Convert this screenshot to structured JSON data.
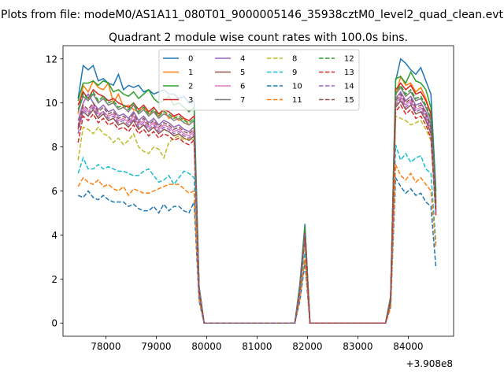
{
  "chart_data": {
    "type": "line",
    "suptitle": "Plots from file: modeM0/AS1A11_080T01_9000005146_35938cztM0_level2_quad_clean.evt",
    "title": "Quadrant 2 module wise count rates with 100.0s bins.",
    "xlabel": "",
    "ylabel": "",
    "x_offset_label": "+3.908e8",
    "x_offset": 390800000,
    "xlim": [
      77150,
      84900
    ],
    "ylim": [
      -0.6,
      12.6
    ],
    "x_ticks": [
      78000,
      79000,
      80000,
      81000,
      82000,
      83000,
      84000
    ],
    "y_ticks": [
      0,
      2,
      4,
      6,
      8,
      10,
      12
    ],
    "grid": false,
    "legend": {
      "placement": "top-center",
      "columns": 4
    },
    "x": [
      77450,
      77550,
      77650,
      77750,
      77850,
      77950,
      78050,
      78150,
      78250,
      78350,
      78450,
      78550,
      78650,
      78750,
      78850,
      78950,
      79050,
      79150,
      79250,
      79350,
      79450,
      79550,
      79650,
      79750,
      79850,
      79950,
      80050,
      80150,
      80250,
      80350,
      80450,
      80550,
      80650,
      80750,
      80850,
      80950,
      81050,
      81150,
      81250,
      81350,
      81450,
      81550,
      81650,
      81750,
      81850,
      81950,
      82050,
      82150,
      82250,
      82350,
      82450,
      82550,
      82650,
      82750,
      82850,
      82950,
      83050,
      83150,
      83250,
      83350,
      83450,
      83550,
      83650,
      83750,
      83850,
      83950,
      84050,
      84150,
      84250,
      84350,
      84450,
      84550
    ],
    "series": [
      {
        "name": "0",
        "color": "#1f77b4",
        "dash": "solid",
        "values": [
          10.2,
          11.7,
          11.5,
          11.7,
          11.0,
          11.1,
          10.9,
          10.8,
          11.3,
          10.6,
          10.8,
          10.7,
          10.8,
          10.5,
          10.6,
          10.4,
          10.5,
          10.6,
          10.4,
          10.4,
          10.2,
          10.3,
          10.0,
          10.1,
          1.7,
          0,
          0,
          0,
          0,
          0,
          0,
          0,
          0,
          0,
          0,
          0,
          0,
          0,
          0,
          0,
          0,
          0,
          0,
          0,
          1.8,
          4.5,
          0,
          0,
          0,
          0,
          0,
          0,
          0,
          0,
          0,
          0,
          0,
          0,
          0,
          0,
          0,
          0,
          1.2,
          11.0,
          12.0,
          11.8,
          11.5,
          11.3,
          11.6,
          11.0,
          10.4,
          6.0
        ]
      },
      {
        "name": "1",
        "color": "#ff7f0e",
        "dash": "solid",
        "values": [
          9.5,
          10.8,
          10.5,
          11.0,
          10.7,
          10.6,
          10.9,
          10.0,
          10.4,
          9.8,
          9.9,
          9.7,
          9.6,
          9.8,
          9.5,
          9.6,
          9.4,
          9.7,
          9.3,
          9.4,
          9.2,
          9.3,
          9.0,
          9.2,
          1.5,
          0,
          0,
          0,
          0,
          0,
          0,
          0,
          0,
          0,
          0,
          0,
          0,
          0,
          0,
          0,
          0,
          0,
          0,
          0,
          1.6,
          4.1,
          0,
          0,
          0,
          0,
          0,
          0,
          0,
          0,
          0,
          0,
          0,
          0,
          0,
          0,
          0,
          0,
          1.1,
          10.3,
          11.2,
          10.8,
          10.9,
          10.5,
          10.7,
          10.2,
          9.5,
          5.4
        ]
      },
      {
        "name": "2",
        "color": "#2ca02c",
        "dash": "solid",
        "values": [
          10.1,
          10.9,
          10.9,
          11.0,
          10.8,
          11.0,
          10.9,
          10.5,
          10.6,
          10.4,
          10.3,
          10.5,
          10.2,
          10.4,
          10.6,
          10.2,
          10.0,
          10.1,
          10.3,
          9.9,
          10.0,
          9.8,
          9.6,
          9.8,
          1.6,
          0,
          0,
          0,
          0,
          0,
          0,
          0,
          0,
          0,
          0,
          0,
          0,
          0,
          0,
          0,
          0,
          0,
          0,
          0,
          1.7,
          4.4,
          0,
          0,
          0,
          0,
          0,
          0,
          0,
          0,
          0,
          0,
          0,
          0,
          0,
          0,
          0,
          0,
          1.2,
          11.1,
          11.2,
          10.9,
          11.4,
          11.0,
          10.9,
          10.6,
          9.8,
          5.7
        ]
      },
      {
        "name": "3",
        "color": "#d62728",
        "dash": "solid",
        "values": [
          9.9,
          10.5,
          10.2,
          10.6,
          10.4,
          10.3,
          10.1,
          10.2,
          10.0,
          9.9,
          9.8,
          10.0,
          9.7,
          9.9,
          9.6,
          9.8,
          9.5,
          9.7,
          9.6,
          9.4,
          9.5,
          9.3,
          9.2,
          9.4,
          1.6,
          0,
          0,
          0,
          0,
          0,
          0,
          0,
          0,
          0,
          0,
          0,
          0,
          0,
          0,
          0,
          0,
          0,
          0,
          0,
          1.6,
          4.3,
          0,
          0,
          0,
          0,
          0,
          0,
          0,
          0,
          0,
          0,
          0,
          0,
          0,
          0,
          0,
          0,
          1.1,
          10.6,
          10.9,
          10.6,
          10.8,
          10.4,
          10.5,
          10.1,
          9.5,
          5.5
        ]
      },
      {
        "name": "4",
        "color": "#9467bd",
        "dash": "solid",
        "values": [
          9.2,
          10.0,
          10.4,
          10.0,
          9.7,
          9.9,
          9.6,
          9.7,
          9.4,
          9.5,
          9.3,
          9.6,
          9.2,
          9.4,
          9.1,
          9.3,
          9.0,
          9.2,
          9.1,
          8.9,
          9.0,
          8.8,
          8.7,
          8.9,
          1.5,
          0,
          0,
          0,
          0,
          0,
          0,
          0,
          0,
          0,
          0,
          0,
          0,
          0,
          0,
          0,
          0,
          0,
          0,
          0,
          1.6,
          4.2,
          0,
          0,
          0,
          0,
          0,
          0,
          0,
          0,
          0,
          0,
          0,
          0,
          0,
          0,
          0,
          0,
          1.1,
          10.2,
          10.5,
          10.1,
          10.3,
          9.9,
          10.0,
          9.6,
          9.0,
          5.2
        ]
      },
      {
        "name": "5",
        "color": "#8c564b",
        "dash": "solid",
        "values": [
          8.8,
          9.6,
          9.4,
          9.7,
          9.3,
          9.5,
          9.2,
          9.3,
          9.0,
          9.1,
          8.9,
          9.2,
          8.8,
          9.0,
          8.7,
          8.9,
          8.6,
          8.8,
          8.7,
          8.5,
          8.6,
          8.4,
          8.3,
          8.5,
          1.4,
          0,
          0,
          0,
          0,
          0,
          0,
          0,
          0,
          0,
          0,
          0,
          0,
          0,
          0,
          0,
          0,
          0,
          0,
          0,
          1.5,
          4.0,
          0,
          0,
          0,
          0,
          0,
          0,
          0,
          0,
          0,
          0,
          0,
          0,
          0,
          0,
          0,
          0,
          1.0,
          9.8,
          10.1,
          9.7,
          9.9,
          9.5,
          9.6,
          9.2,
          8.6,
          5.0
        ]
      },
      {
        "name": "6",
        "color": "#e377c2",
        "dash": "solid",
        "values": [
          9.0,
          9.8,
          9.6,
          9.9,
          9.5,
          9.6,
          9.4,
          9.5,
          9.2,
          9.3,
          9.1,
          9.4,
          9.0,
          9.2,
          8.9,
          9.1,
          8.8,
          9.0,
          8.9,
          8.7,
          8.8,
          8.6,
          8.5,
          8.7,
          1.5,
          0,
          0,
          0,
          0,
          0,
          0,
          0,
          0,
          0,
          0,
          0,
          0,
          0,
          0,
          0,
          0,
          0,
          0,
          0,
          1.5,
          4.1,
          0,
          0,
          0,
          0,
          0,
          0,
          0,
          0,
          0,
          0,
          0,
          0,
          0,
          0,
          0,
          0,
          1.0,
          10.0,
          10.3,
          9.9,
          10.1,
          9.7,
          9.8,
          9.4,
          8.8,
          5.1
        ]
      },
      {
        "name": "7",
        "color": "#7f7f7f",
        "dash": "solid",
        "values": [
          9.6,
          10.3,
          10.1,
          10.4,
          10.0,
          10.2,
          9.9,
          10.0,
          9.7,
          9.8,
          9.6,
          9.9,
          9.5,
          9.7,
          9.4,
          9.6,
          9.3,
          9.5,
          9.4,
          9.2,
          9.3,
          9.1,
          9.0,
          9.2,
          1.6,
          0,
          0,
          0,
          0,
          0,
          0,
          0,
          0,
          0,
          0,
          0,
          0,
          0,
          0,
          0,
          0,
          0,
          0,
          0,
          1.6,
          4.3,
          0,
          0,
          0,
          0,
          0,
          0,
          0,
          0,
          0,
          0,
          0,
          0,
          0,
          0,
          0,
          0,
          1.1,
          10.4,
          10.7,
          10.3,
          10.5,
          10.1,
          10.2,
          9.8,
          9.2,
          5.3
        ]
      },
      {
        "name": "8",
        "color": "#bcbd22",
        "dash": "dashed",
        "values": [
          7.4,
          8.9,
          8.8,
          8.6,
          8.9,
          8.6,
          8.5,
          8.2,
          8.4,
          8.1,
          8.3,
          8.6,
          8.0,
          7.8,
          7.7,
          8.0,
          7.9,
          7.5,
          8.2,
          8.4,
          8.5,
          8.3,
          8.4,
          8.3,
          1.3,
          0,
          0,
          0,
          0,
          0,
          0,
          0,
          0,
          0,
          0,
          0,
          0,
          0,
          0,
          0,
          0,
          0,
          0,
          0,
          1.4,
          3.7,
          0,
          0,
          0,
          0,
          0,
          0,
          0,
          0,
          0,
          0,
          0,
          0,
          0,
          0,
          0,
          0,
          0.9,
          9.4,
          9.3,
          9.2,
          9.0,
          9.1,
          9.2,
          8.8,
          8.3,
          4.8
        ]
      },
      {
        "name": "9",
        "color": "#17becf",
        "dash": "dashed",
        "values": [
          6.8,
          7.5,
          7.0,
          7.0,
          7.2,
          7.0,
          7.1,
          7.0,
          6.9,
          6.9,
          6.8,
          6.7,
          6.7,
          6.9,
          7.0,
          6.7,
          6.4,
          6.5,
          6.7,
          6.3,
          6.6,
          6.9,
          6.8,
          6.6,
          1.2,
          0,
          0,
          0,
          0,
          0,
          0,
          0,
          0,
          0,
          0,
          0,
          0,
          0,
          0,
          0,
          0,
          0,
          0,
          0,
          1.2,
          3.2,
          0,
          0,
          0,
          0,
          0,
          0,
          0,
          0,
          0,
          0,
          0,
          0,
          0,
          0,
          0,
          0,
          0.8,
          8.1,
          7.4,
          7.7,
          7.3,
          7.5,
          7.6,
          7.0,
          6.8,
          3.6
        ]
      },
      {
        "name": "10",
        "color": "#1f77b4",
        "dash": "dashed",
        "values": [
          5.8,
          5.7,
          6.0,
          5.7,
          5.6,
          5.8,
          5.6,
          5.5,
          5.5,
          5.5,
          5.3,
          5.4,
          5.2,
          5.1,
          5.1,
          5.3,
          5.0,
          5.4,
          5.1,
          5.3,
          5.3,
          5.1,
          5.0,
          5.5,
          1.0,
          0,
          0,
          0,
          0,
          0,
          0,
          0,
          0,
          0,
          0,
          0,
          0,
          0,
          0,
          0,
          0,
          0,
          0,
          0,
          1.0,
          2.7,
          0,
          0,
          0,
          0,
          0,
          0,
          0,
          0,
          0,
          0,
          0,
          0,
          0,
          0,
          0,
          0,
          0.7,
          6.6,
          6.2,
          5.9,
          6.1,
          5.8,
          5.9,
          5.5,
          5.3,
          2.5
        ]
      },
      {
        "name": "11",
        "color": "#ff7f0e",
        "dash": "dashed",
        "values": [
          6.2,
          6.6,
          6.4,
          6.3,
          6.5,
          6.2,
          6.3,
          6.1,
          6.0,
          6.2,
          5.8,
          6.1,
          6.0,
          5.9,
          5.9,
          6.0,
          6.1,
          6.2,
          6.3,
          6.3,
          6.3,
          6.1,
          5.9,
          6.0,
          1.1,
          0,
          0,
          0,
          0,
          0,
          0,
          0,
          0,
          0,
          0,
          0,
          0,
          0,
          0,
          0,
          0,
          0,
          0,
          0,
          1.1,
          2.9,
          0,
          0,
          0,
          0,
          0,
          0,
          0,
          0,
          0,
          0,
          0,
          0,
          0,
          0,
          0,
          0,
          0.7,
          7.2,
          6.7,
          6.5,
          6.8,
          6.4,
          6.6,
          6.3,
          6.0,
          3.4
        ]
      },
      {
        "name": "12",
        "color": "#2ca02c",
        "dash": "dashed",
        "values": [
          9.7,
          10.4,
          10.2,
          10.5,
          10.1,
          10.3,
          10.0,
          10.1,
          9.8,
          9.9,
          9.7,
          10.0,
          9.6,
          9.8,
          9.5,
          9.7,
          9.4,
          9.6,
          9.5,
          9.3,
          9.4,
          9.2,
          9.1,
          9.3,
          1.6,
          0,
          0,
          0,
          0,
          0,
          0,
          0,
          0,
          0,
          0,
          0,
          0,
          0,
          0,
          0,
          0,
          0,
          0,
          0,
          1.6,
          4.3,
          0,
          0,
          0,
          0,
          0,
          0,
          0,
          0,
          0,
          0,
          0,
          0,
          0,
          0,
          0,
          0,
          1.1,
          10.5,
          10.8,
          10.4,
          10.6,
          10.2,
          10.3,
          9.9,
          9.3,
          5.4
        ]
      },
      {
        "name": "13",
        "color": "#d62728",
        "dash": "dashed",
        "values": [
          8.2,
          9.4,
          9.2,
          9.5,
          9.1,
          9.3,
          9.0,
          9.1,
          8.8,
          8.9,
          8.7,
          9.0,
          8.6,
          8.8,
          8.5,
          8.7,
          8.4,
          8.6,
          8.5,
          8.3,
          8.4,
          8.2,
          8.1,
          8.3,
          1.4,
          0,
          0,
          0,
          0,
          0,
          0,
          0,
          0,
          0,
          0,
          0,
          0,
          0,
          0,
          0,
          0,
          0,
          0,
          0,
          1.5,
          3.9,
          0,
          0,
          0,
          0,
          0,
          0,
          0,
          0,
          0,
          0,
          0,
          0,
          0,
          0,
          0,
          0,
          1.0,
          9.6,
          9.9,
          9.5,
          9.7,
          9.3,
          9.4,
          9.0,
          8.4,
          4.9
        ]
      },
      {
        "name": "14",
        "color": "#9467bd",
        "dash": "dashed",
        "values": [
          8.6,
          9.7,
          9.5,
          9.8,
          9.4,
          9.6,
          9.3,
          9.4,
          9.1,
          9.2,
          9.0,
          9.3,
          8.9,
          9.1,
          8.8,
          9.0,
          8.7,
          8.9,
          8.8,
          8.6,
          8.7,
          8.5,
          8.4,
          8.6,
          1.5,
          0,
          0,
          0,
          0,
          0,
          0,
          0,
          0,
          0,
          0,
          0,
          0,
          0,
          0,
          0,
          0,
          0,
          0,
          0,
          1.5,
          4.0,
          0,
          0,
          0,
          0,
          0,
          0,
          0,
          0,
          0,
          0,
          0,
          0,
          0,
          0,
          0,
          0,
          1.0,
          9.9,
          10.2,
          9.8,
          10.0,
          9.6,
          9.7,
          9.3,
          8.7,
          5.0
        ]
      },
      {
        "name": "15",
        "color": "#8c564b",
        "dash": "dashed",
        "values": [
          8.9,
          9.9,
          9.7,
          10.0,
          9.6,
          9.8,
          9.5,
          9.6,
          9.3,
          9.4,
          9.2,
          9.5,
          9.1,
          9.3,
          9.0,
          9.2,
          8.9,
          9.1,
          9.0,
          8.8,
          8.9,
          8.7,
          8.6,
          8.8,
          1.5,
          0,
          0,
          0,
          0,
          0,
          0,
          0,
          0,
          0,
          0,
          0,
          0,
          0,
          0,
          0,
          0,
          0,
          0,
          0,
          1.5,
          4.1,
          0,
          0,
          0,
          0,
          0,
          0,
          0,
          0,
          0,
          0,
          0,
          0,
          0,
          0,
          0,
          0,
          1.0,
          10.1,
          10.4,
          10.0,
          10.2,
          9.8,
          9.9,
          9.5,
          8.9,
          5.1
        ]
      }
    ]
  }
}
